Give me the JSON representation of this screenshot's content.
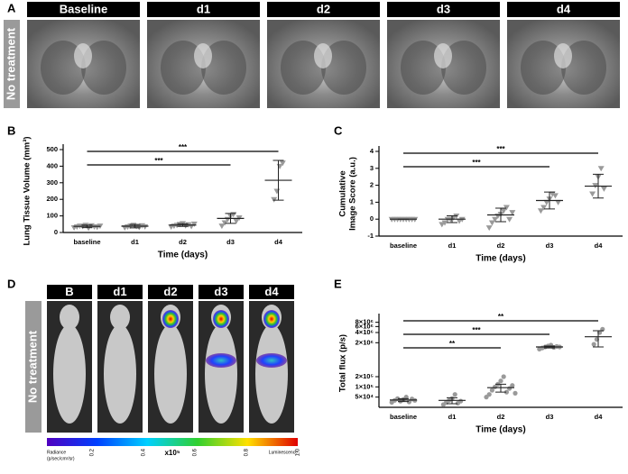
{
  "panel_labels": [
    "A",
    "B",
    "C",
    "D",
    "E"
  ],
  "panel_a": {
    "side_label": "No treatment",
    "headers": [
      "Baseline",
      "d1",
      "d2",
      "d3",
      "d4"
    ]
  },
  "panel_d": {
    "side_label": "No treatment",
    "headers": [
      "B",
      "d1",
      "d2",
      "d3",
      "d4"
    ],
    "colorbar": {
      "ticks": [
        "0.2",
        "0.4",
        "0.6",
        "0.8",
        "1.0"
      ],
      "left_label": [
        "Radiance",
        "(p/sec/cm²/sr)"
      ],
      "unit": "x10⁵",
      "right_label": "Luminescence"
    }
  },
  "chart_data": [
    {
      "type": "dot",
      "marker": "triangle",
      "color": "#9a9a9a",
      "ylabel": [
        "Lung Tissue Volume (mm³)"
      ],
      "xlabel": "Time (days)",
      "categories": [
        "baseline",
        "d1",
        "d2",
        "d3",
        "d4"
      ],
      "points": [
        [
          30,
          35,
          40,
          38,
          45,
          28,
          42,
          36,
          33,
          40
        ],
        [
          30,
          35,
          40,
          45,
          38,
          32,
          42,
          36
        ],
        [
          35,
          40,
          45,
          50,
          55,
          42,
          48,
          38,
          52
        ],
        [
          40,
          60,
          80,
          100,
          110,
          70,
          90
        ],
        [
          200,
          250,
          400,
          420
        ]
      ],
      "means": [
        37,
        38,
        45,
        85,
        315
      ],
      "errors": [
        8,
        10,
        8,
        30,
        120
      ],
      "ylim": [
        0,
        500
      ],
      "yticks": [
        0,
        100,
        200,
        300,
        400,
        500
      ],
      "log_scale": false,
      "brackets": [
        {
          "from": "baseline",
          "to": "d4",
          "label": "***"
        },
        {
          "from": "baseline",
          "to": "d3",
          "label": "***"
        }
      ]
    },
    {
      "type": "dot",
      "marker": "triangle",
      "color": "#9a9a9a",
      "ylabel": [
        "Cumulative",
        "Image Score (a.u.)"
      ],
      "xlabel": "Time (days)",
      "categories": [
        "baseline",
        "d1",
        "d2",
        "d3",
        "d4"
      ],
      "points": [
        [
          0,
          0,
          0,
          0,
          0,
          0,
          0,
          0,
          0
        ],
        [
          -0.3,
          -0.2,
          0,
          0,
          0.1,
          0.2,
          -0.1,
          0
        ],
        [
          -0.5,
          -0.2,
          0,
          0.2,
          0.3,
          0.5,
          0.7,
          0,
          0.4
        ],
        [
          0.5,
          0.7,
          1,
          1.2,
          1.5,
          1.4,
          1
        ],
        [
          1.5,
          2,
          2.5,
          3,
          1.8
        ]
      ],
      "means": [
        0,
        0,
        0.25,
        1.1,
        1.95
      ],
      "errors": [
        0,
        0.2,
        0.4,
        0.5,
        0.7
      ],
      "ylim": [
        -1,
        4
      ],
      "yticks": [
        -1,
        0,
        1,
        2,
        3,
        4
      ],
      "log_scale": false,
      "brackets": [
        {
          "from": "baseline",
          "to": "d4",
          "label": "***"
        },
        {
          "from": "baseline",
          "to": "d3",
          "label": "***"
        }
      ]
    },
    {
      "type": "dot",
      "marker": "circle",
      "color": "#9a9a9a",
      "ylabel": [
        "Total flux (p/s)"
      ],
      "xlabel": "Time (days)",
      "categories": [
        "baseline",
        "d1",
        "d2",
        "d3",
        "d4"
      ],
      "points": [
        [
          35000,
          40000,
          45000,
          38000,
          42000,
          50000,
          36000,
          44000,
          40000
        ],
        [
          30000,
          35000,
          40000,
          45000,
          60000,
          33000,
          38000
        ],
        [
          50000,
          60000,
          80000,
          100000,
          120000,
          150000,
          200000,
          70000,
          90000,
          110000,
          65000
        ],
        [
          1300000,
          1400000,
          1500000,
          1600000,
          1700000,
          1450000,
          1550000,
          1500000
        ],
        [
          1800000,
          2500000,
          4000000,
          5000000
        ]
      ],
      "means": [
        41000,
        40000,
        95000,
        1500000,
        3000000
      ],
      "errors": [
        4000,
        8000,
        25000,
        100000,
        1500000
      ],
      "ylim": [
        25000,
        10000000
      ],
      "log_scale": true,
      "yticks": [
        {
          "value": 50000,
          "label": "5×10⁴"
        },
        {
          "value": 100000,
          "label": "1×10⁵"
        },
        {
          "value": 200000,
          "label": "2×10⁵"
        },
        {
          "value": 2000000,
          "label": "2×10⁶"
        },
        {
          "value": 4000000,
          "label": "4×10⁶"
        },
        {
          "value": 6000000,
          "label": "6×10⁶"
        },
        {
          "value": 8000000,
          "label": "8×10⁶"
        }
      ],
      "brackets": [
        {
          "from": "baseline",
          "to": "d4",
          "label": "**"
        },
        {
          "from": "baseline",
          "to": "d3",
          "label": "***"
        },
        {
          "from": "baseline",
          "to": "d2",
          "label": "**"
        }
      ]
    }
  ]
}
